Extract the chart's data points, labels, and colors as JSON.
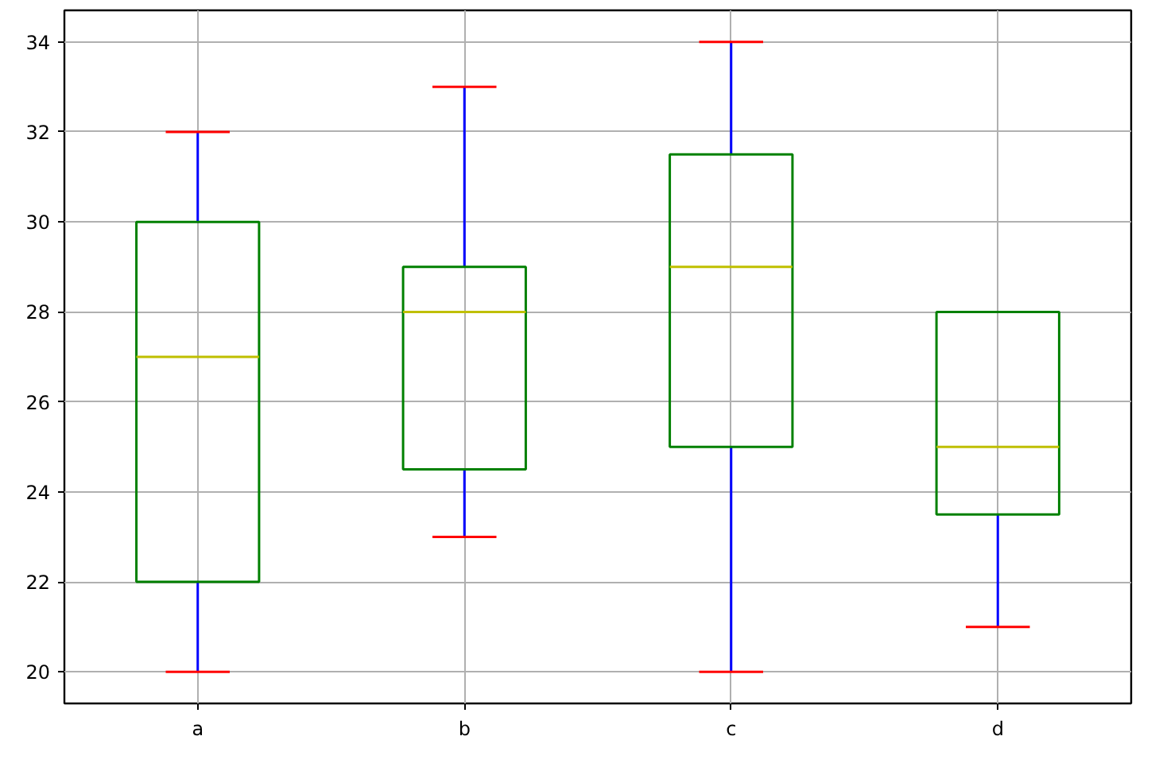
{
  "chart_data": {
    "type": "box",
    "categories": [
      "a",
      "b",
      "c",
      "d"
    ],
    "series": [
      {
        "color": "#008000",
        "boxes": [
          {
            "low": 20,
            "q1": 22,
            "median": 27,
            "q3": 30,
            "high": 32
          },
          {
            "low": 23,
            "q1": 24.5,
            "median": 28,
            "q3": 29,
            "high": 33
          },
          {
            "low": 20,
            "q1": 25,
            "median": 29,
            "q3": 31.5,
            "high": 34
          },
          {
            "low": 21,
            "q1": 23.5,
            "median": 25,
            "q3": 28,
            "high": 28
          }
        ]
      }
    ],
    "ylim": [
      19.3,
      34.7
    ],
    "yticks": [
      20,
      22,
      24,
      26,
      28,
      30,
      32,
      34
    ],
    "grid": true
  }
}
